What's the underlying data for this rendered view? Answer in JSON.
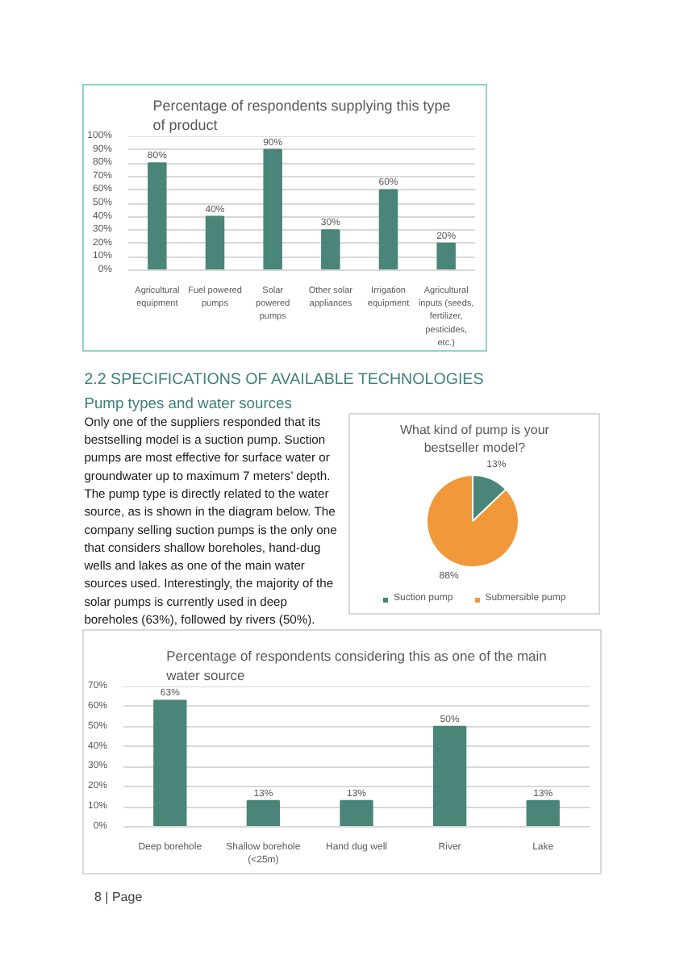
{
  "chart_data": [
    {
      "type": "bar",
      "title": "Percentage of respondents supplying this type of product",
      "categories": [
        "Agricultural equipment",
        "Fuel powered pumps",
        "Solar powered pumps",
        "Other solar appliances",
        "Irrigation equipment",
        "Agricultural inputs (seeds, fertilizer, pesticides, etc.)"
      ],
      "values": [
        80,
        40,
        90,
        30,
        60,
        20
      ],
      "color": "#4a8579",
      "value_labels": [
        "80%",
        "40%",
        "90%",
        "30%",
        "60%",
        "20%"
      ],
      "ylim": [
        0,
        100
      ],
      "yticks": [
        {
          "value": 0,
          "label": "0%"
        },
        {
          "value": 10,
          "label": "10%"
        },
        {
          "value": 20,
          "label": "20%"
        },
        {
          "value": 30,
          "label": "30%"
        },
        {
          "value": 40,
          "label": "40%"
        },
        {
          "value": 50,
          "label": "50%"
        },
        {
          "value": 60,
          "label": "60%"
        },
        {
          "value": 70,
          "label": "70%"
        },
        {
          "value": 80,
          "label": "80%"
        },
        {
          "value": 90,
          "label": "90%"
        },
        {
          "value": 100,
          "label": "100%"
        }
      ],
      "grid": "y"
    },
    {
      "type": "pie",
      "title": "What kind of pump is your bestseller model?",
      "categories": [
        "Suction pump",
        "Submersible pump"
      ],
      "values": [
        13,
        88
      ],
      "colors": [
        "#4a8579",
        "#f0983a"
      ],
      "value_labels": [
        "13%",
        "88%"
      ],
      "legend": "bottom",
      "annotations": [
        "2.2 SPECIFICATIONS OF AVAILABLE TECHNOLOGIES",
        "Pump types and water sources",
        "Only one of the suppliers responded that its bestselling model is a suction pump. Suction pumps are most effective for surface water or groundwater up to maximum 7 meters’ depth. The pump type is directly related to the water source, as is shown in the diagram below. The company selling suction pumps is the only one that considers shallow boreholes, hand-dug wells and lakes as one of the main water sources used. Interestingly, the majority of the solar pumps is currently used in deep boreholes (63%), followed by rivers (50%)."
      ]
    },
    {
      "type": "bar",
      "title": "Percentage of respondents considering this as one of the main water source",
      "categories": [
        "Deep borehole",
        "Shallow borehole (<25m)",
        "Hand dug well",
        "River",
        "Lake"
      ],
      "values": [
        63,
        13,
        13,
        50,
        13
      ],
      "color": "#4a8579",
      "value_labels": [
        "63%",
        "13%",
        "13%",
        "50%",
        "13%"
      ],
      "ylim": [
        0,
        70
      ],
      "yticks": [
        {
          "value": 0,
          "label": "0%"
        },
        {
          "value": 10,
          "label": "10%"
        },
        {
          "value": 20,
          "label": "20%"
        },
        {
          "value": 30,
          "label": "30%"
        },
        {
          "value": 40,
          "label": "40%"
        },
        {
          "value": 50,
          "label": "50%"
        },
        {
          "value": 60,
          "label": "60%"
        },
        {
          "value": 70,
          "label": "70%"
        }
      ],
      "grid": "y",
      "annotations": [
        "8 | Page"
      ]
    }
  ]
}
